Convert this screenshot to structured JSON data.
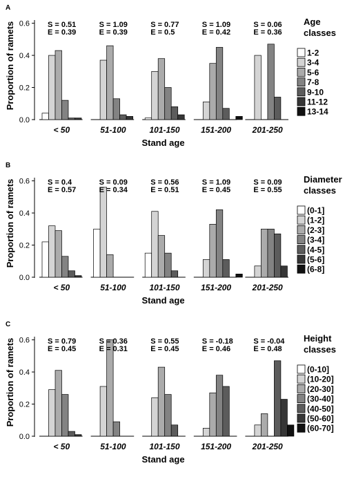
{
  "chart_data": [
    {
      "panel_label": "A",
      "type": "bar",
      "xlabel": "Stand age",
      "ylabel": "Proportion of ramets",
      "ylim": [
        0,
        0.65
      ],
      "yticks": [
        "0.0",
        "0.2",
        "0.4",
        "0.6"
      ],
      "grid": false,
      "legend_title": [
        "Age",
        "classes"
      ],
      "legend_position": "right",
      "categories": [
        "< 50",
        "51-100",
        "101-150",
        "151-200",
        "201-250"
      ],
      "stats": [
        {
          "S": "S =  0.51",
          "E": "E =  0.39"
        },
        {
          "S": "S =  1.09",
          "E": "E =  0.39"
        },
        {
          "S": "S =  0.77",
          "E": "E =  0.5"
        },
        {
          "S": "S =  1.09",
          "E": "E =  0.42"
        },
        {
          "S": "S =  0.06",
          "E": "E =  0.36"
        }
      ],
      "series": [
        {
          "name": "1-2",
          "color": "#ffffff",
          "values": [
            0.04,
            0.0,
            0.01,
            0.0,
            0.0
          ]
        },
        {
          "name": "3-4",
          "color": "#d4d4d4",
          "values": [
            0.4,
            0.37,
            0.3,
            0.11,
            0.4
          ]
        },
        {
          "name": "5-6",
          "color": "#ababab",
          "values": [
            0.43,
            0.46,
            0.38,
            0.35,
            0.0
          ]
        },
        {
          "name": "7-8",
          "color": "#838383",
          "values": [
            0.12,
            0.13,
            0.2,
            0.45,
            0.47
          ]
        },
        {
          "name": "9-10",
          "color": "#5c5c5c",
          "values": [
            0.01,
            0.03,
            0.08,
            0.07,
            0.14
          ]
        },
        {
          "name": "11-12",
          "color": "#363636",
          "values": [
            0.01,
            0.02,
            0.03,
            0.0,
            0.0
          ]
        },
        {
          "name": "13-14",
          "color": "#111111",
          "values": [
            0.0,
            0.0,
            0.0,
            0.02,
            0.0
          ]
        }
      ]
    },
    {
      "panel_label": "B",
      "type": "bar",
      "xlabel": "Stand age",
      "ylabel": "Proportion of ramets",
      "ylim": [
        0,
        0.65
      ],
      "yticks": [
        "0.0",
        "0.2",
        "0.4",
        "0.6"
      ],
      "grid": false,
      "legend_title": [
        "Diameter",
        "classes"
      ],
      "legend_position": "right",
      "categories": [
        "< 50",
        "51-100",
        "101-150",
        "151-200",
        "201-250"
      ],
      "stats": [
        {
          "S": "S =  0.4",
          "E": "E =  0.57"
        },
        {
          "S": "S =  0.09",
          "E": "E =  0.34"
        },
        {
          "S": "S =  0.56",
          "E": "E =  0.51"
        },
        {
          "S": "S =  1.09",
          "E": "E =  0.45"
        },
        {
          "S": "S =  0.09",
          "E": "E =  0.55"
        }
      ],
      "series": [
        {
          "name": "(0-1]",
          "color": "#ffffff",
          "values": [
            0.22,
            0.3,
            0.15,
            0.0,
            0.0
          ]
        },
        {
          "name": "(1-2]",
          "color": "#d4d4d4",
          "values": [
            0.32,
            0.56,
            0.41,
            0.11,
            0.07
          ]
        },
        {
          "name": "(2-3]",
          "color": "#ababab",
          "values": [
            0.29,
            0.14,
            0.26,
            0.33,
            0.3
          ]
        },
        {
          "name": "(3-4]",
          "color": "#838383",
          "values": [
            0.13,
            0.0,
            0.15,
            0.42,
            0.3
          ]
        },
        {
          "name": "(4-5]",
          "color": "#5c5c5c",
          "values": [
            0.04,
            0.0,
            0.04,
            0.11,
            0.27
          ]
        },
        {
          "name": "(5-6]",
          "color": "#363636",
          "values": [
            0.01,
            0.0,
            0.0,
            0.0,
            0.07
          ]
        },
        {
          "name": "(6-8]",
          "color": "#111111",
          "values": [
            0.0,
            0.0,
            0.0,
            0.02,
            0.0
          ]
        }
      ]
    },
    {
      "panel_label": "C",
      "type": "bar",
      "xlabel": "Stand age",
      "ylabel": "Proportion of ramets",
      "ylim": [
        0,
        0.65
      ],
      "yticks": [
        "0.0",
        "0.2",
        "0.4",
        "0.6"
      ],
      "grid": false,
      "legend_title": [
        "Height",
        "classes"
      ],
      "legend_position": "right",
      "categories": [
        "< 50",
        "51-100",
        "101-150",
        "151-200",
        "201-250"
      ],
      "stats": [
        {
          "S": "S =  0.79",
          "E": "E =  0.45"
        },
        {
          "S": "S =  0.36",
          "E": "E =  0.31"
        },
        {
          "S": "S =  0.55",
          "E": "E =  0.45"
        },
        {
          "S": "S =  -0.18",
          "E": "E =  0.46"
        },
        {
          "S": "S =  -0.04",
          "E": "E =  0.48"
        }
      ],
      "series": [
        {
          "name": "(0-10]",
          "color": "#ffffff",
          "values": [
            0.0,
            0.0,
            0.0,
            0.0,
            0.0
          ]
        },
        {
          "name": "(10-20]",
          "color": "#d4d4d4",
          "values": [
            0.29,
            0.31,
            0.24,
            0.05,
            0.07
          ]
        },
        {
          "name": "(20-30]",
          "color": "#ababab",
          "values": [
            0.41,
            0.6,
            0.43,
            0.27,
            0.14
          ]
        },
        {
          "name": "(30-40]",
          "color": "#838383",
          "values": [
            0.26,
            0.09,
            0.26,
            0.38,
            0.0
          ]
        },
        {
          "name": "(40-50]",
          "color": "#5c5c5c",
          "values": [
            0.03,
            0.0,
            0.07,
            0.31,
            0.47
          ]
        },
        {
          "name": "(50-60]",
          "color": "#363636",
          "values": [
            0.01,
            0.0,
            0.0,
            0.0,
            0.23
          ]
        },
        {
          "name": "(60-70]",
          "color": "#111111",
          "values": [
            0.0,
            0.0,
            0.0,
            0.0,
            0.07
          ]
        }
      ]
    }
  ]
}
